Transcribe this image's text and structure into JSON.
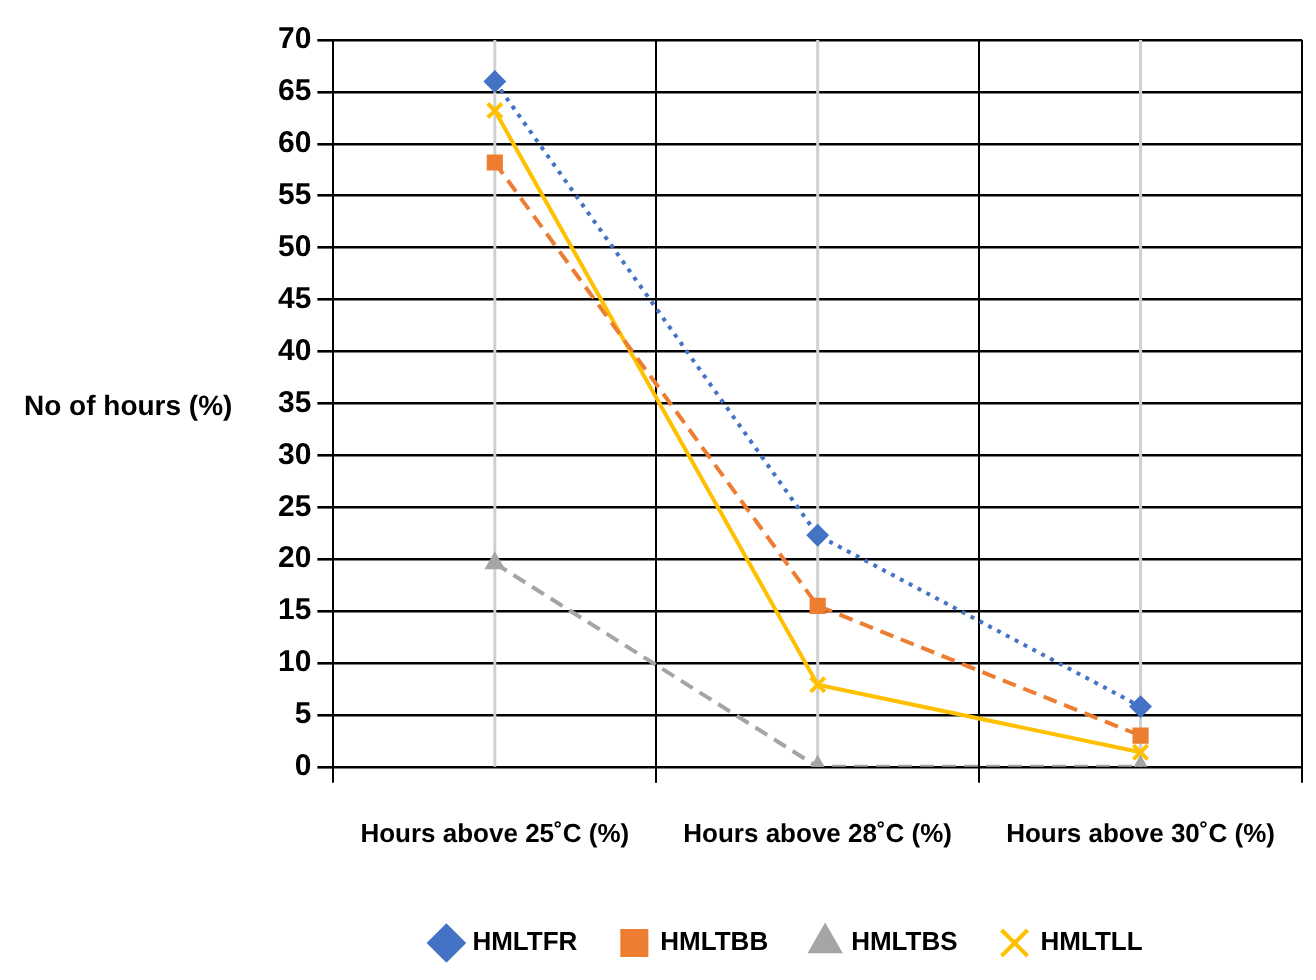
{
  "chart_data": {
    "type": "line",
    "ylabel": "No of hours (%)",
    "categories": [
      "Hours above 25˚C (%)",
      "Hours above 28˚C (%)",
      "Hours above 30˚C (%)"
    ],
    "series": [
      {
        "name": "HMLTFR",
        "color": "#4472c4",
        "values": [
          66,
          22.3,
          5.8
        ],
        "marker": "diamond",
        "line_style": "dotted"
      },
      {
        "name": "HMLTBB",
        "color": "#ed7d31",
        "values": [
          58.2,
          15.5,
          3
        ],
        "marker": "square",
        "line_style": "dashed"
      },
      {
        "name": "HMLTBS",
        "color": "#a5a5a5",
        "values": [
          19.6,
          0,
          0
        ],
        "marker": "triangle",
        "line_style": "dashed"
      },
      {
        "name": "HMLTLL",
        "color": "#ffc000",
        "values": [
          63.2,
          7.9,
          1.4
        ],
        "marker": "cross",
        "line_style": "solid"
      }
    ],
    "ylim": [
      0,
      70
    ],
    "yticks": [
      0,
      5,
      10,
      15,
      20,
      25,
      30,
      35,
      40,
      45,
      50,
      55,
      60,
      65,
      70
    ],
    "grid": true,
    "legend": "bottom"
  }
}
